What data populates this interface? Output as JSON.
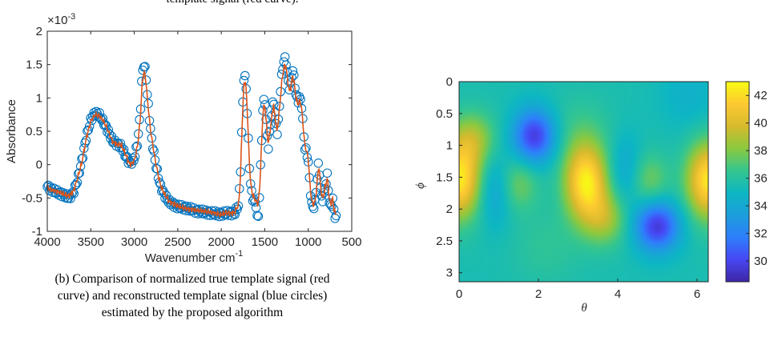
{
  "top_caption": "template signal (red curve).",
  "caption_lines": [
    "(b) Comparison of normalized true template signal (red",
    "curve) and reconstructed template signal (blue circles)",
    "estimated by the proposed algorithm"
  ],
  "chart_data": [
    {
      "type": "line",
      "xlabel": "Wavenumber cm",
      "xlabel_sup": "-1",
      "ylabel": "Absorbance",
      "exponent_label": "×10",
      "exponent_sup": "-3",
      "xlim": [
        4000,
        500
      ],
      "ylim": [
        -1,
        2
      ],
      "x_reversed": true,
      "xticks": [
        "4000",
        "3500",
        "3000",
        "2500",
        "2000",
        "1500",
        "1000",
        "500"
      ],
      "yticks": [
        "-1",
        "-0.5",
        "0",
        "0.5",
        "1",
        "1.5",
        "2"
      ],
      "colors": {
        "true_curve": "#d95319",
        "reconstructed": "#0072bd"
      },
      "x": [
        4000,
        3950,
        3900,
        3850,
        3800,
        3750,
        3700,
        3650,
        3600,
        3550,
        3500,
        3450,
        3400,
        3350,
        3300,
        3250,
        3200,
        3150,
        3100,
        3050,
        3000,
        2960,
        2930,
        2910,
        2890,
        2870,
        2850,
        2820,
        2800,
        2750,
        2700,
        2650,
        2600,
        2500,
        2400,
        2300,
        2200,
        2100,
        2000,
        1950,
        1900,
        1850,
        1800,
        1780,
        1760,
        1740,
        1720,
        1700,
        1680,
        1660,
        1640,
        1620,
        1600,
        1580,
        1560,
        1540,
        1520,
        1500,
        1480,
        1460,
        1440,
        1420,
        1400,
        1380,
        1360,
        1340,
        1320,
        1300,
        1280,
        1260,
        1240,
        1220,
        1200,
        1180,
        1160,
        1140,
        1120,
        1100,
        1080,
        1060,
        1040,
        1020,
        1000,
        980,
        960,
        940,
        920,
        900,
        880,
        860,
        840,
        820,
        800,
        780,
        760,
        740,
        720,
        700,
        680
      ],
      "series": [
        {
          "name": "true template signal",
          "values": [
            -0.35,
            -0.38,
            -0.4,
            -0.42,
            -0.45,
            -0.47,
            -0.4,
            -0.2,
            0.05,
            0.4,
            0.65,
            0.75,
            0.73,
            0.65,
            0.5,
            0.35,
            0.3,
            0.3,
            0.15,
            0.0,
            0.05,
            0.3,
            0.7,
            1.2,
            1.4,
            1.3,
            1.0,
            0.6,
            0.4,
            0.0,
            -0.3,
            -0.45,
            -0.55,
            -0.62,
            -0.66,
            -0.68,
            -0.7,
            -0.72,
            -0.75,
            -0.72,
            -0.73,
            -0.72,
            -0.6,
            -0.2,
            0.6,
            1.2,
            1.25,
            0.8,
            0.1,
            -0.3,
            -0.45,
            -0.5,
            -0.55,
            -0.6,
            -0.4,
            0.2,
            0.8,
            0.9,
            0.6,
            0.3,
            0.5,
            0.7,
            0.9,
            0.7,
            0.5,
            0.7,
            1.0,
            1.3,
            1.45,
            1.5,
            1.3,
            1.1,
            1.15,
            1.35,
            1.2,
            1.0,
            0.9,
            0.95,
            0.9,
            0.6,
            0.3,
            0.2,
            0.1,
            -0.3,
            -0.55,
            -0.6,
            -0.55,
            -0.3,
            0.0,
            -0.3,
            -0.5,
            -0.45,
            -0.3,
            -0.2,
            -0.5,
            -0.6,
            -0.5,
            -0.7,
            -0.75
          ]
        },
        {
          "name": "reconstructed template signal",
          "values": [
            -0.33,
            -0.37,
            -0.41,
            -0.43,
            -0.46,
            -0.5,
            -0.42,
            -0.22,
            0.08,
            0.42,
            0.67,
            0.78,
            0.74,
            0.63,
            0.5,
            0.36,
            0.31,
            0.28,
            0.13,
            0.02,
            0.08,
            0.35,
            0.8,
            1.35,
            1.5,
            1.4,
            1.05,
            0.62,
            0.38,
            -0.02,
            -0.32,
            -0.46,
            -0.56,
            -0.63,
            -0.65,
            -0.69,
            -0.71,
            -0.73,
            -0.74,
            -0.73,
            -0.72,
            -0.74,
            -0.6,
            -0.15,
            0.7,
            1.3,
            1.3,
            0.75,
            0.05,
            -0.35,
            -0.5,
            -0.55,
            -0.6,
            -0.9,
            -0.45,
            0.25,
            0.9,
            1.0,
            0.55,
            0.25,
            0.55,
            0.75,
            1.0,
            0.75,
            0.45,
            0.7,
            1.1,
            1.4,
            1.55,
            1.6,
            1.35,
            1.15,
            1.2,
            1.45,
            1.25,
            1.05,
            0.95,
            1.0,
            0.95,
            0.6,
            0.25,
            0.2,
            0.05,
            -0.35,
            -0.6,
            -0.65,
            -0.55,
            -0.25,
            0.05,
            -0.35,
            -0.55,
            -0.45,
            -0.3,
            -0.15,
            -0.55,
            -0.65,
            -0.5,
            -0.75,
            -0.8
          ]
        }
      ]
    },
    {
      "type": "heatmap",
      "xlabel": "θ",
      "ylabel": "ϕ",
      "xlim": [
        0,
        6.283
      ],
      "ylim": [
        0,
        3.1416
      ],
      "y_reversed": true,
      "xticks": [
        "0",
        "2",
        "4",
        "6"
      ],
      "yticks": [
        "0",
        "0.5",
        "1",
        "1.5",
        "2",
        "2.5",
        "3"
      ],
      "colorbar_ticks": [
        "30",
        "32",
        "34",
        "36",
        "38",
        "40",
        "42"
      ],
      "clim": [
        28.5,
        43
      ],
      "colormap": [
        "#3e26a8",
        "#4748f4",
        "#2e7ffc",
        "#1c9fdc",
        "#0db7c3",
        "#35c68f",
        "#8ac940",
        "#d7ba2d",
        "#fcc932",
        "#f9fb15"
      ],
      "base_value": 35.5,
      "features": [
        {
          "theta": 0.0,
          "phi": 1.55,
          "amplitude": 6.8,
          "s_theta": 0.38,
          "s_phi": 0.42
        },
        {
          "theta": 6.283,
          "phi": 1.55,
          "amplitude": 6.8,
          "s_theta": 0.38,
          "s_phi": 0.42
        },
        {
          "theta": 3.2,
          "phi": 1.58,
          "amplitude": 7.0,
          "s_theta": 0.38,
          "s_phi": 0.42
        },
        {
          "theta": 1.9,
          "phi": 0.85,
          "amplitude": -6.0,
          "s_theta": 0.38,
          "s_phi": 0.3
        },
        {
          "theta": 5.0,
          "phi": 2.27,
          "amplitude": -6.0,
          "s_theta": 0.4,
          "s_phi": 0.28
        },
        {
          "theta": 0.35,
          "phi": 0.9,
          "amplitude": 3.0,
          "s_theta": 0.4,
          "s_phi": 0.3
        },
        {
          "theta": 3.7,
          "phi": 2.15,
          "amplitude": 3.0,
          "s_theta": 0.4,
          "s_phi": 0.3
        },
        {
          "theta": 4.8,
          "phi": 1.55,
          "amplitude": 2.2,
          "s_theta": 0.35,
          "s_phi": 0.3
        },
        {
          "theta": 1.5,
          "phi": 1.6,
          "amplitude": 2.2,
          "s_theta": 0.35,
          "s_phi": 0.3
        },
        {
          "theta": 0.9,
          "phi": 1.7,
          "amplitude": -2.0,
          "s_theta": 0.3,
          "s_phi": 0.4
        },
        {
          "theta": 4.2,
          "phi": 1.4,
          "amplitude": -1.8,
          "s_theta": 0.3,
          "s_phi": 0.4
        },
        {
          "theta": 3.0,
          "phi": 0.8,
          "amplitude": 1.0,
          "s_theta": 0.6,
          "s_phi": 0.4
        },
        {
          "theta": 2.2,
          "phi": 2.6,
          "amplitude": 0.8,
          "s_theta": 0.6,
          "s_phi": 0.4
        },
        {
          "theta": 5.8,
          "phi": 0.2,
          "amplitude": -1.0,
          "s_theta": 0.5,
          "s_phi": 0.4
        }
      ]
    }
  ]
}
